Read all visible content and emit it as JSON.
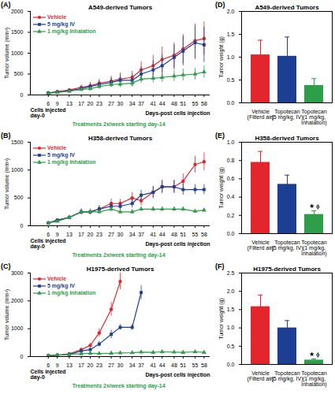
{
  "chart_data": [
    {
      "type": "line",
      "panel": "(A)",
      "title": "A549-derived Tumors",
      "x_label": "Days-post cells injection",
      "y_label": "Tumor volume (mm³)",
      "x": [
        6,
        9,
        13,
        17,
        20,
        23,
        27,
        30,
        34,
        37,
        41,
        44,
        48,
        51,
        55,
        58
      ],
      "xlim": [
        0,
        60
      ],
      "xticks": [
        6,
        9,
        13,
        17,
        20,
        23,
        27,
        30,
        34,
        37,
        41,
        44,
        48,
        51,
        55,
        58
      ],
      "ylim": [
        0,
        2000
      ],
      "yticks": [
        0,
        500,
        1000,
        1500,
        2000
      ],
      "legend": "top-left",
      "annotations": [
        {
          "text": "Cells injected\nday-0",
          "x": 0
        },
        {
          "text": "Treatments 2x/week starting day-14",
          "x": 14,
          "color": "#2e9e4a"
        }
      ],
      "series": [
        {
          "name": "Vehicle",
          "color": "#e3262e",
          "marker": "circle",
          "values": [
            50,
            80,
            120,
            180,
            220,
            280,
            330,
            380,
            420,
            600,
            700,
            850,
            950,
            1100,
            1300,
            1350
          ],
          "errors": [
            20,
            30,
            40,
            60,
            80,
            100,
            120,
            150,
            150,
            200,
            250,
            300,
            300,
            350,
            400,
            400
          ]
        },
        {
          "name": "5 mg/kg IV",
          "color": "#1c3f94",
          "marker": "square",
          "values": [
            50,
            70,
            100,
            150,
            200,
            250,
            300,
            350,
            350,
            500,
            600,
            700,
            900,
            1050,
            1250,
            1200
          ],
          "errors": [
            20,
            25,
            35,
            50,
            70,
            90,
            110,
            130,
            140,
            180,
            220,
            260,
            300,
            350,
            400,
            420
          ]
        },
        {
          "name": "1 mg/kg Inhalation",
          "color": "#2e9e4a",
          "marker": "triangle",
          "values": [
            40,
            60,
            90,
            130,
            150,
            200,
            250,
            260,
            280,
            380,
            400,
            420,
            450,
            480,
            500,
            550
          ],
          "errors": [
            20,
            25,
            30,
            40,
            50,
            60,
            70,
            80,
            90,
            100,
            110,
            120,
            130,
            140,
            140,
            150
          ]
        }
      ]
    },
    {
      "type": "bar",
      "panel": "(D)",
      "title": "A549-derived Tumors",
      "y_label": "Tumor weight (g)",
      "categories": [
        "Vehicle\n(Filterd air)",
        "Topotecan\n(5 mg/kg, IV)",
        "Topotecan\n(1 mg/kg,\ninhalation)"
      ],
      "values": [
        1.05,
        1.02,
        0.38
      ],
      "errors": [
        0.32,
        0.42,
        0.15
      ],
      "colors": [
        "#e3262e",
        "#1c3f94",
        "#2e9e4a"
      ],
      "ylim": [
        0,
        2
      ],
      "yticks": [
        {
          "value": 0,
          "label": "0.0"
        },
        {
          "value": 0.5,
          "label": "0.5"
        },
        {
          "value": 1,
          "label": "1.0"
        },
        {
          "value": 1.5,
          "label": "1.5"
        },
        {
          "value": 2,
          "label": "2.0"
        }
      ],
      "annotations": []
    },
    {
      "type": "line",
      "panel": "(B)",
      "title": "H358-derived Tumors",
      "x_label": "Days-post cells injection",
      "y_label": "Tumor volume (mm³)",
      "x": [
        6,
        9,
        13,
        17,
        20,
        23,
        27,
        30,
        34,
        37,
        41,
        44,
        48,
        51,
        55,
        58
      ],
      "xlim": [
        0,
        60
      ],
      "xticks": [
        6,
        9,
        13,
        17,
        20,
        23,
        27,
        30,
        34,
        37,
        41,
        44,
        48,
        51,
        55,
        58
      ],
      "ylim": [
        0,
        1500
      ],
      "yticks": [
        0,
        500,
        1000,
        1500
      ],
      "legend": "top-left",
      "annotations": [
        {
          "text": "Cells injected\nday-0",
          "x": 0
        },
        {
          "text": "Treatments 2x/week starting day-14",
          "x": 14,
          "color": "#2e9e4a"
        }
      ],
      "series": [
        {
          "name": "Vehicle",
          "color": "#e3262e",
          "marker": "circle",
          "values": [
            50,
            100,
            150,
            250,
            250,
            300,
            400,
            400,
            500,
            450,
            600,
            700,
            700,
            800,
            1100,
            1150
          ],
          "errors": [
            15,
            25,
            35,
            50,
            50,
            60,
            80,
            80,
            100,
            90,
            110,
            120,
            120,
            130,
            150,
            160
          ]
        },
        {
          "name": "5 mg/kg IV",
          "color": "#1c3f94",
          "marker": "square",
          "values": [
            50,
            100,
            150,
            250,
            250,
            300,
            350,
            350,
            400,
            550,
            600,
            700,
            700,
            650,
            650,
            650
          ],
          "errors": [
            15,
            25,
            35,
            50,
            50,
            60,
            70,
            70,
            80,
            90,
            100,
            110,
            110,
            100,
            90,
            90
          ]
        },
        {
          "name": "1 mg/kg Inhalation",
          "color": "#2e9e4a",
          "marker": "triangle",
          "values": [
            50,
            80,
            150,
            250,
            250,
            250,
            300,
            250,
            250,
            300,
            300,
            300,
            300,
            300,
            260,
            280
          ],
          "errors": [
            15,
            20,
            30,
            40,
            40,
            40,
            50,
            40,
            40,
            40,
            40,
            40,
            40,
            40,
            35,
            35
          ]
        }
      ]
    },
    {
      "type": "bar",
      "panel": "(E)",
      "title": "H358-derived Tumors",
      "y_label": "Tumor weight (g)",
      "categories": [
        "Vehicle\n(Filterd air)",
        "Topotecan\n(5 mg/kg, IV)",
        "Topotecan\n(1 mg/kg,\ninhalation)"
      ],
      "values": [
        0.78,
        0.54,
        0.21
      ],
      "errors": [
        0.12,
        0.1,
        0.04
      ],
      "colors": [
        "#e3262e",
        "#1c3f94",
        "#2e9e4a"
      ],
      "ylim": [
        0,
        1
      ],
      "yticks": [
        {
          "value": 0,
          "label": "0.0"
        },
        {
          "value": 0.2,
          "label": "0.2"
        },
        {
          "value": 0.4,
          "label": "0.4"
        },
        {
          "value": 0.6,
          "label": "0.6"
        },
        {
          "value": 0.8,
          "label": "0.8"
        },
        {
          "value": 1,
          "label": "1.0"
        }
      ],
      "annotations": [
        {
          "text": "★ ϕ",
          "category": "Topotecan\n(1 mg/kg,\ninhalation)"
        }
      ]
    },
    {
      "type": "line",
      "panel": "(C)",
      "title": "H1975-derived Tumors",
      "x_label": "Days-post cells injection",
      "y_label": "Tumor volume (mm³)",
      "x": [
        6,
        9,
        13,
        17,
        20,
        23,
        27,
        30,
        34,
        37,
        41,
        44,
        48,
        51,
        55,
        58
      ],
      "xlim": [
        0,
        60
      ],
      "xticks": [
        6,
        9,
        13,
        17,
        20,
        23,
        27,
        30,
        34,
        37,
        41,
        44,
        48,
        51,
        55,
        58
      ],
      "ylim": [
        0,
        3000
      ],
      "yticks": [
        0,
        1000,
        2000,
        3000
      ],
      "legend": "top-left",
      "annotations": [
        {
          "text": "Cells injected\nday-0",
          "x": 0
        },
        {
          "text": "Treatments 2x/week starting day-14",
          "x": 14,
          "color": "#2e9e4a"
        }
      ],
      "series": [
        {
          "name": "Vehicle",
          "color": "#e3262e",
          "marker": "circle",
          "values": [
            30,
            50,
            100,
            250,
            400,
            850,
            1700,
            2700,
            null,
            null,
            null,
            null,
            null,
            null,
            null,
            null
          ],
          "errors": [
            10,
            20,
            30,
            60,
            80,
            150,
            250,
            300,
            null,
            null,
            null,
            null,
            null,
            null,
            null,
            null
          ]
        },
        {
          "name": "5 mg/kg IV",
          "color": "#1c3f94",
          "marker": "square",
          "values": [
            30,
            50,
            80,
            200,
            250,
            450,
            800,
            1050,
            1050,
            2300,
            null,
            null,
            null,
            null,
            null,
            null
          ],
          "errors": [
            10,
            15,
            25,
            50,
            60,
            100,
            150,
            100,
            100,
            250,
            null,
            null,
            null,
            null,
            null,
            null
          ]
        },
        {
          "name": "1 mg/kg Inhalation",
          "color": "#2e9e4a",
          "marker": "triangle",
          "values": [
            30,
            50,
            80,
            100,
            120,
            110,
            120,
            130,
            140,
            160,
            150,
            170,
            160,
            150,
            170,
            150
          ],
          "errors": [
            10,
            15,
            20,
            25,
            30,
            30,
            30,
            30,
            35,
            40,
            35,
            40,
            40,
            35,
            40,
            35
          ]
        }
      ]
    },
    {
      "type": "bar",
      "panel": "(F)",
      "title": "H1975-derived Tumors",
      "y_label": "Tumor weight (g)",
      "categories": [
        "Vehicle\n(Filterd air)",
        "Topotecan\n(5 mg/kg, IV)",
        "Topotecan\n(1 mg/kg,\ninhalation)"
      ],
      "values": [
        1.58,
        1.0,
        0.12
      ],
      "errors": [
        0.32,
        0.2,
        0.03
      ],
      "colors": [
        "#e3262e",
        "#1c3f94",
        "#2e9e4a"
      ],
      "ylim": [
        0,
        2.5
      ],
      "yticks": [
        {
          "value": 0,
          "label": "0.0"
        },
        {
          "value": 0.5,
          "label": "0.5"
        },
        {
          "value": 1,
          "label": "1.0"
        },
        {
          "value": 1.5,
          "label": "1.5"
        },
        {
          "value": 2,
          "label": "2.0"
        },
        {
          "value": 2.5,
          "label": "2.5"
        }
      ],
      "annotations": [
        {
          "text": "★ ϕ",
          "category": "Topotecan\n(1 mg/kg,\ninhalation)"
        }
      ]
    }
  ]
}
